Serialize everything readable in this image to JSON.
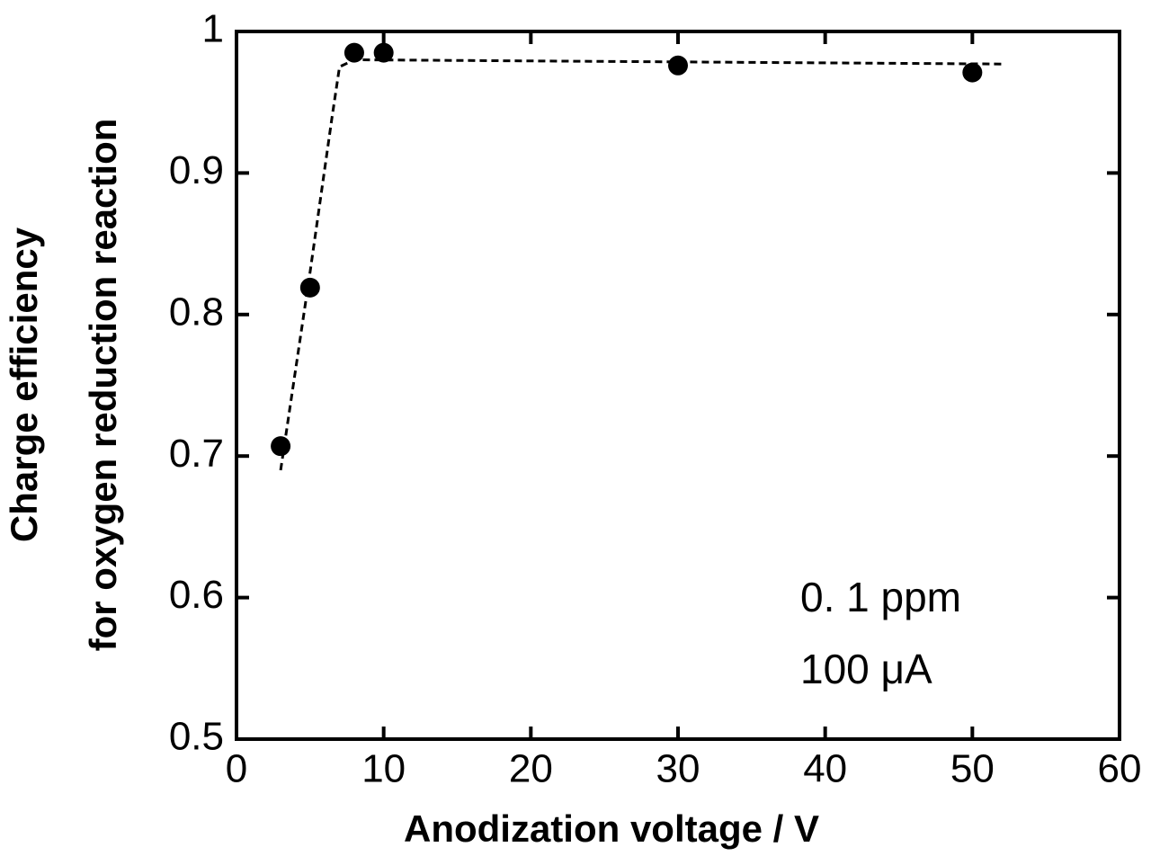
{
  "chart_data": {
    "type": "scatter",
    "x_label": "Anodization voltage / V",
    "y_label": [
      "Charge efficiency",
      "for oxygen reduction reaction"
    ],
    "annotations": [
      "0. 1  ppm",
      "100  μA"
    ],
    "xlim": [
      0,
      60
    ],
    "xticks": [
      0,
      10,
      20,
      30,
      40,
      50,
      60
    ],
    "ylim": [
      0.5,
      1
    ],
    "yticks": [
      0.5,
      0.6,
      0.7,
      0.8,
      0.9,
      1
    ],
    "series": [
      {
        "color": "#000000",
        "x": [
          3,
          5,
          8,
          10,
          30,
          50
        ],
        "values": [
          0.707,
          0.819,
          0.985,
          0.985,
          0.976,
          0.971
        ]
      },
      {
        "color": "#000000",
        "style": "dashed",
        "x": [
          3,
          5,
          6.5,
          7,
          8,
          52
        ],
        "values": [
          0.69,
          0.83,
          0.94,
          0.975,
          0.98,
          0.977
        ]
      }
    ]
  }
}
